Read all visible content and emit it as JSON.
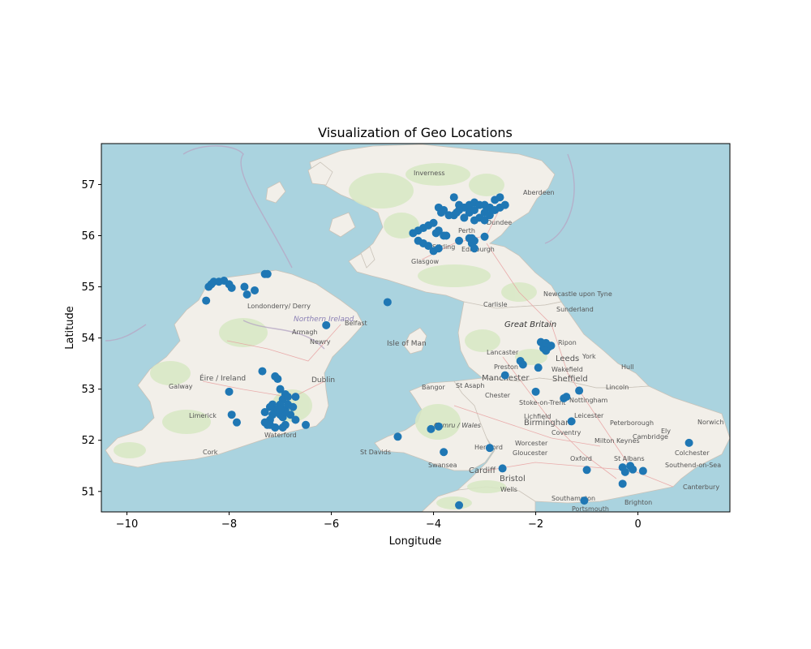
{
  "chart_data": {
    "type": "scatter",
    "title": "Visualization of Geo Locations",
    "xlabel": "Longitude",
    "ylabel": "Latitude",
    "xlim": [
      -10.5,
      1.8
    ],
    "ylim": [
      50.6,
      57.8
    ],
    "xticks": [
      -10,
      -8,
      -6,
      -4,
      -2,
      0
    ],
    "yticks": [
      51,
      52,
      53,
      54,
      55,
      56,
      57
    ],
    "xtick_labels": [
      "−10",
      "−8",
      "−6",
      "−4",
      "−2",
      "0"
    ],
    "ytick_labels": [
      "51",
      "52",
      "53",
      "54",
      "55",
      "56",
      "57"
    ],
    "grid": false,
    "background": "basemap (OpenStreetMap)",
    "colors": {
      "points": "#1f77b4",
      "sea": "#aad3df",
      "land": "#f2efe9",
      "greenland": "#d8e8c4"
    },
    "series": [
      {
        "x": [
          -3.6,
          -3.5,
          -3.4,
          -3.3,
          -3.2,
          -3.1,
          -3.0,
          -2.9,
          -2.8,
          -2.7,
          -3.5,
          -3.3,
          -3.2,
          -3.0,
          -2.9,
          -2.7,
          -3.6,
          -3.4,
          -3.1,
          -2.8,
          -3.7,
          -3.8,
          -3.9,
          -3.85,
          -3.2,
          -3.0,
          -2.6,
          -3.55,
          -4.3,
          -4.2,
          -4.1,
          -4.0,
          -3.9,
          -4.3,
          -4.0,
          -4.4,
          -3.95,
          -3.8,
          -3.75,
          -3.3,
          -3.25,
          -3.2,
          -3.0,
          -3.5,
          -3.2,
          -3.25,
          -4.2,
          -4.1,
          -3.9,
          -8.4,
          -8.35,
          -8.3,
          -8.2,
          -8.1,
          -8.0,
          -7.95,
          -7.7,
          -7.65,
          -7.5,
          -7.3,
          -7.25,
          -8.45,
          -6.1,
          -4.9,
          -7.35,
          -7.1,
          -7.05,
          -7.0,
          -6.9,
          -6.95,
          -7.15,
          -7.2,
          -7.0,
          -6.85,
          -7.05,
          -7.1,
          -6.9,
          -7.2,
          -7.3,
          -7.25,
          -7.0,
          -6.95,
          -6.8,
          -6.75,
          -6.7,
          -7.1,
          -6.9,
          -7.15,
          -7.05,
          -6.85,
          -6.9,
          -7.0,
          -7.3,
          -7.2,
          -7.1,
          -6.5,
          -6.7,
          -6.95,
          -8.0,
          -7.95,
          -7.85,
          -4.7,
          -4.05,
          -3.9,
          -3.8,
          -2.9,
          -3.5,
          -1.9,
          -1.85,
          -1.8,
          -1.75,
          -1.7,
          -1.8,
          -1.95,
          -2.3,
          -2.25,
          -2.6,
          -2.0,
          -1.45,
          -1.4,
          -1.15,
          -1.3,
          -2.65,
          -1.0,
          -0.3,
          -0.25,
          -0.15,
          -0.1,
          0.1,
          -0.3,
          -1.05,
          1.0
        ],
        "y": [
          56.75,
          56.6,
          56.55,
          56.6,
          56.65,
          56.6,
          56.6,
          56.55,
          56.7,
          56.75,
          56.5,
          56.45,
          56.5,
          56.45,
          56.4,
          56.55,
          56.4,
          56.35,
          56.35,
          56.5,
          56.4,
          56.5,
          56.55,
          56.45,
          56.3,
          56.3,
          56.6,
          56.45,
          56.1,
          56.15,
          56.2,
          56.25,
          56.1,
          55.9,
          55.7,
          56.05,
          56.05,
          56.0,
          56.0,
          55.95,
          55.85,
          55.9,
          55.98,
          55.9,
          55.75,
          55.95,
          55.85,
          55.8,
          55.75,
          55.0,
          55.05,
          55.1,
          55.1,
          55.12,
          55.05,
          54.98,
          55.0,
          54.85,
          54.93,
          55.25,
          55.25,
          54.73,
          54.25,
          54.7,
          53.35,
          53.25,
          53.2,
          53.0,
          52.9,
          52.8,
          52.7,
          52.65,
          52.7,
          52.85,
          52.6,
          52.55,
          52.6,
          52.4,
          52.35,
          52.3,
          52.5,
          52.45,
          52.5,
          52.65,
          52.85,
          52.25,
          52.3,
          52.5,
          52.6,
          52.7,
          52.55,
          52.6,
          52.55,
          52.3,
          52.25,
          52.3,
          52.4,
          52.25,
          52.95,
          52.5,
          52.35,
          52.07,
          52.22,
          52.27,
          51.77,
          51.85,
          50.73,
          53.92,
          53.8,
          53.9,
          53.82,
          53.85,
          53.75,
          53.42,
          53.55,
          53.48,
          53.27,
          52.95,
          52.82,
          52.85,
          52.97,
          52.37,
          51.45,
          51.42,
          51.47,
          51.38,
          51.5,
          51.43,
          51.4,
          51.15,
          50.82,
          51.95
        ]
      }
    ],
    "map_labels": [
      "Inverness",
      "Aberdeen",
      "Dundee",
      "Perth",
      "Stirling",
      "Edinburgh",
      "Glasgow",
      "Newcastle upon Tyne",
      "Carlisle",
      "Sunderland",
      "Great Britain",
      "Ripon",
      "Lancaster",
      "Leeds",
      "York",
      "Hull",
      "Preston",
      "Wakefield",
      "Manchester",
      "Sheffield",
      "Lincoln",
      "Bangor",
      "St Asaph",
      "Chester",
      "Stoke-on-Trent",
      "Nottingham",
      "Lichfield",
      "Leicester",
      "Birmingham",
      "Peterborough",
      "Ely",
      "Norwich",
      "Coventry",
      "Cambridge",
      "Worcester",
      "Milton Keynes",
      "Hereford",
      "Gloucester",
      "Oxford",
      "St Albans",
      "Colchester",
      "St Davids",
      "Swansea",
      "Cardiff",
      "Bristol",
      "Southend-on-Sea",
      "Canterbury",
      "Wells",
      "Southampton",
      "Brighton",
      "Portsmouth",
      "Londonderry/ Derry",
      "Northern Ireland",
      "Armagh",
      "Belfast",
      "Newry",
      "Isle of Man",
      "Éire / Ireland",
      "Galway",
      "Dublin",
      "Limerick",
      "Cork",
      "Waterford",
      "Cymru / Wales"
    ]
  }
}
